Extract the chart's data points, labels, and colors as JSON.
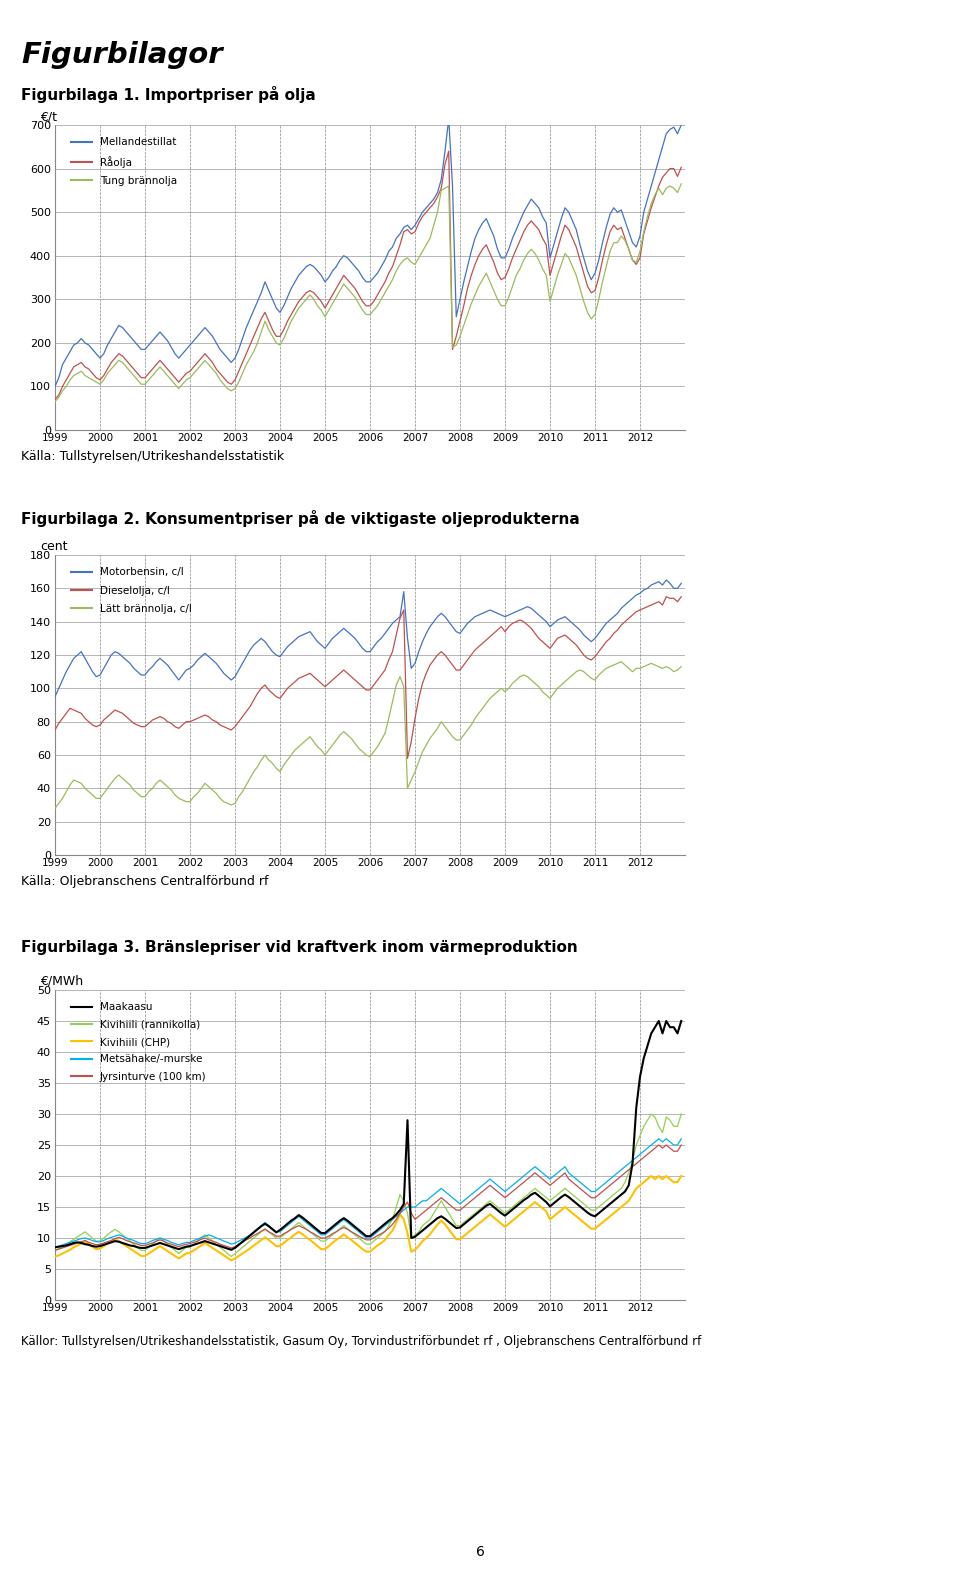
{
  "page_title": "Figurbilagor",
  "fig1_title": "Figurbilaga 1. Importpriser på olja",
  "fig1_ylabel": "€/t",
  "fig1_source": "Källa: Tullstyrelsen/Utrikeshandelsstatistik",
  "fig1_ylim": [
    0,
    700
  ],
  "fig1_yticks": [
    0,
    100,
    200,
    300,
    400,
    500,
    600,
    700
  ],
  "fig1_legend": [
    "Mellandestillat",
    "Råolja",
    "Tung brännolja"
  ],
  "fig1_colors": [
    "#4472C4",
    "#C0504D",
    "#9BBB59"
  ],
  "fig2_title": "Figurbilaga 2. Konsumentpriser på de viktigaste oljeprodukterna",
  "fig2_ylabel": "cent",
  "fig2_source": "Källa: Oljebranschens Centralförbund rf",
  "fig2_ylim": [
    0,
    180
  ],
  "fig2_yticks": [
    0,
    20,
    40,
    60,
    80,
    100,
    120,
    140,
    160,
    180
  ],
  "fig2_legend": [
    "Motorbensin, c/l",
    "Dieselolja, c/l",
    "Lätt brännolja, c/l"
  ],
  "fig2_colors": [
    "#4472C4",
    "#C0504D",
    "#9BBB59"
  ],
  "fig3_title": "Figurbilaga 3. Bränslepriser vid kraftverk inom värmeproduktion",
  "fig3_ylabel": "€/MWh",
  "fig3_source": "Källor: Tullstyrelsen/Utrikeshandelsstatistik, Gasum Oy, Torvindustriförbundet rf , Oljebranschens Centralförbund rf",
  "fig3_ylim": [
    0,
    50
  ],
  "fig3_yticks": [
    0,
    5,
    10,
    15,
    20,
    25,
    30,
    35,
    40,
    45,
    50
  ],
  "fig3_legend": [
    "Maakaasu",
    "Kivihiili (rannikolla)",
    "Kivihiili (CHP)",
    "Metsähake/-murske",
    "Jyrsinturve (100 km)"
  ],
  "fig3_colors": [
    "#000000",
    "#92D050",
    "#FFC000",
    "#00B0F0",
    "#C0504D"
  ],
  "xticks": [
    1999,
    2000,
    2001,
    2002,
    2003,
    2004,
    2005,
    2006,
    2007,
    2008,
    2009,
    2010,
    2011,
    2012
  ],
  "page_num": "6",
  "bg_color": "#ffffff",
  "grid_color": "#AAAAAA",
  "vline_color": "#888888",
  "spine_color": "#888888"
}
